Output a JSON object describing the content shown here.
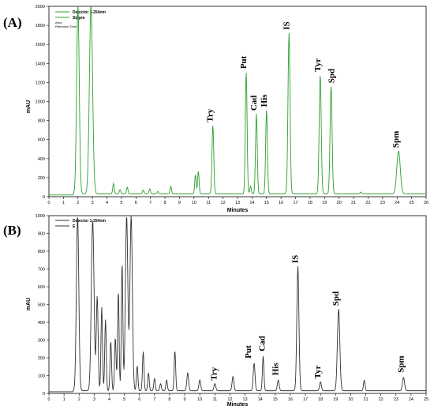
{
  "chart_data": [
    {
      "type": "line",
      "panel": "(A)",
      "xlabel": "Minutes",
      "ylabel": "mAU",
      "xlim": [
        0,
        26
      ],
      "ylim": [
        0,
        2000
      ],
      "xticks": [
        0,
        1,
        2,
        3,
        4,
        5,
        6,
        7,
        8,
        9,
        10,
        11,
        12,
        13,
        14,
        15,
        16,
        17,
        18,
        19,
        20,
        21,
        22,
        23,
        24,
        25,
        26
      ],
      "yticks": [
        0,
        200,
        400,
        600,
        800,
        1000,
        1200,
        1400,
        1600,
        1800,
        2000
      ],
      "legend": [
        "Detector 1-254nm",
        "Stppm",
        "Area",
        "Retention Time"
      ],
      "color": "#2ca02c",
      "baseline": 30,
      "peaks": [
        {
          "x": 2.0,
          "y": 1980,
          "w": 0.09,
          "label": ""
        },
        {
          "x": 2.9,
          "y": 1980,
          "w": 0.11,
          "label": ""
        },
        {
          "x": 4.45,
          "y": 110,
          "w": 0.05,
          "label": ""
        },
        {
          "x": 4.9,
          "y": 45,
          "w": 0.05,
          "label": ""
        },
        {
          "x": 5.4,
          "y": 70,
          "w": 0.05,
          "label": ""
        },
        {
          "x": 6.5,
          "y": 40,
          "w": 0.05,
          "label": ""
        },
        {
          "x": 6.95,
          "y": 55,
          "w": 0.05,
          "label": ""
        },
        {
          "x": 7.5,
          "y": 25,
          "w": 0.05,
          "label": ""
        },
        {
          "x": 8.4,
          "y": 80,
          "w": 0.05,
          "label": ""
        },
        {
          "x": 10.1,
          "y": 200,
          "w": 0.05,
          "label": ""
        },
        {
          "x": 10.3,
          "y": 240,
          "w": 0.05,
          "label": ""
        },
        {
          "x": 11.3,
          "y": 720,
          "w": 0.06,
          "label": "Try"
        },
        {
          "x": 13.6,
          "y": 1280,
          "w": 0.06,
          "label": "Put"
        },
        {
          "x": 13.9,
          "y": 80,
          "w": 0.05,
          "label": ""
        },
        {
          "x": 14.3,
          "y": 840,
          "w": 0.06,
          "label": "Cad"
        },
        {
          "x": 15.0,
          "y": 880,
          "w": 0.06,
          "label": "His"
        },
        {
          "x": 16.55,
          "y": 1690,
          "w": 0.07,
          "label": "IS"
        },
        {
          "x": 18.7,
          "y": 1250,
          "w": 0.07,
          "label": "Tyr"
        },
        {
          "x": 19.45,
          "y": 1130,
          "w": 0.07,
          "label": "Spd"
        },
        {
          "x": 21.5,
          "y": 20,
          "w": 0.05,
          "label": ""
        },
        {
          "x": 24.1,
          "y": 450,
          "w": 0.12,
          "label": "Spm"
        }
      ]
    },
    {
      "type": "line",
      "panel": "(B)",
      "xlabel": "Minutes",
      "ylabel": "mAU",
      "xlim": [
        0,
        25
      ],
      "ylim": [
        0,
        1000
      ],
      "xticks": [
        0,
        1,
        2,
        3,
        4,
        5,
        6,
        7,
        8,
        9,
        10,
        11,
        12,
        13,
        14,
        15,
        16,
        17,
        18,
        19,
        20,
        21,
        22,
        23,
        24,
        25
      ],
      "yticks": [
        0,
        100,
        200,
        300,
        400,
        500,
        600,
        700,
        800,
        900,
        1000
      ],
      "legend": [
        "Detector 1-254nm",
        "E"
      ],
      "color": "#333333",
      "baseline": 15,
      "peaks": [
        {
          "x": 1.9,
          "y": 985,
          "w": 0.08,
          "label": ""
        },
        {
          "x": 2.9,
          "y": 960,
          "w": 0.09,
          "label": ""
        },
        {
          "x": 3.2,
          "y": 530,
          "w": 0.06,
          "label": ""
        },
        {
          "x": 3.5,
          "y": 470,
          "w": 0.05,
          "label": ""
        },
        {
          "x": 3.75,
          "y": 400,
          "w": 0.05,
          "label": ""
        },
        {
          "x": 4.1,
          "y": 280,
          "w": 0.05,
          "label": ""
        },
        {
          "x": 4.4,
          "y": 300,
          "w": 0.05,
          "label": ""
        },
        {
          "x": 4.6,
          "y": 560,
          "w": 0.05,
          "label": ""
        },
        {
          "x": 4.85,
          "y": 720,
          "w": 0.05,
          "label": ""
        },
        {
          "x": 5.15,
          "y": 985,
          "w": 0.08,
          "label": ""
        },
        {
          "x": 5.45,
          "y": 985,
          "w": 0.08,
          "label": ""
        },
        {
          "x": 5.85,
          "y": 140,
          "w": 0.05,
          "label": ""
        },
        {
          "x": 6.25,
          "y": 220,
          "w": 0.05,
          "label": ""
        },
        {
          "x": 6.6,
          "y": 100,
          "w": 0.05,
          "label": ""
        },
        {
          "x": 7.0,
          "y": 70,
          "w": 0.05,
          "label": ""
        },
        {
          "x": 7.4,
          "y": 40,
          "w": 0.05,
          "label": ""
        },
        {
          "x": 7.8,
          "y": 60,
          "w": 0.05,
          "label": ""
        },
        {
          "x": 8.35,
          "y": 225,
          "w": 0.05,
          "label": ""
        },
        {
          "x": 9.2,
          "y": 100,
          "w": 0.06,
          "label": ""
        },
        {
          "x": 10.0,
          "y": 60,
          "w": 0.06,
          "label": ""
        },
        {
          "x": 11.0,
          "y": 40,
          "w": 0.06,
          "label": "Try"
        },
        {
          "x": 12.2,
          "y": 80,
          "w": 0.06,
          "label": ""
        },
        {
          "x": 13.6,
          "y": 155,
          "w": 0.06,
          "label": "Put"
        },
        {
          "x": 14.2,
          "y": 195,
          "w": 0.05,
          "label": "Cad"
        },
        {
          "x": 15.2,
          "y": 60,
          "w": 0.06,
          "label": "His"
        },
        {
          "x": 16.5,
          "y": 700,
          "w": 0.07,
          "label": "IS"
        },
        {
          "x": 18.0,
          "y": 50,
          "w": 0.06,
          "label": "Tyr"
        },
        {
          "x": 19.2,
          "y": 460,
          "w": 0.08,
          "label": "Spd"
        },
        {
          "x": 20.9,
          "y": 60,
          "w": 0.05,
          "label": ""
        },
        {
          "x": 23.5,
          "y": 75,
          "w": 0.07,
          "label": "Spm"
        }
      ]
    }
  ]
}
